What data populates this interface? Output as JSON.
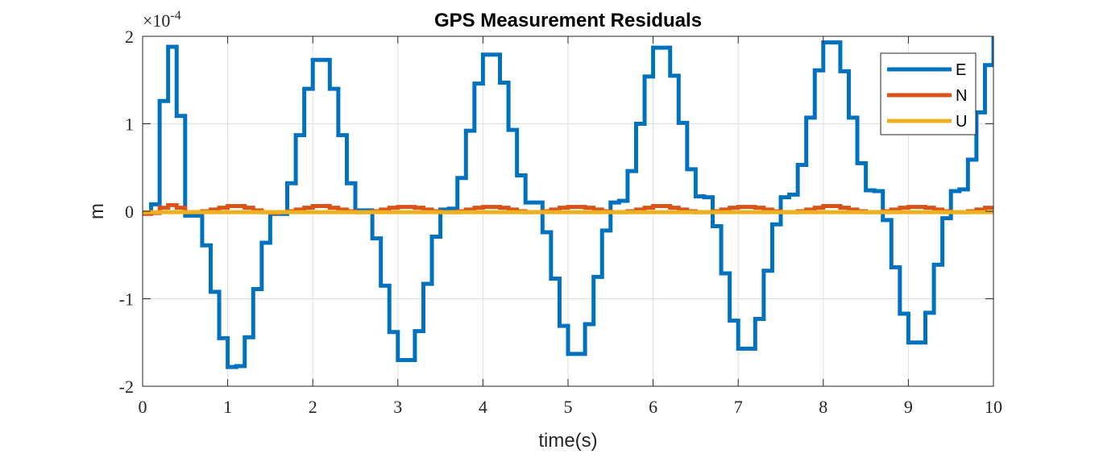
{
  "chart_data": {
    "type": "line",
    "title": "GPS Measurement Residuals",
    "xlabel": "time(s)",
    "ylabel": "m",
    "y_exponent": {
      "base": "×10",
      "power": "-4"
    },
    "xlim": [
      0,
      10
    ],
    "ylim": [
      -2,
      2
    ],
    "x_ticks": [
      "0",
      "1",
      "2",
      "3",
      "4",
      "5",
      "6",
      "7",
      "8",
      "9",
      "10"
    ],
    "y_ticks": [
      "-2",
      "-1",
      "0",
      "1",
      "2"
    ],
    "y_tick_values": [
      -2,
      -1,
      0,
      1,
      2
    ],
    "grid": true,
    "legend_position": "top-right",
    "step_plot": true,
    "series": [
      {
        "name": "E",
        "color": "#0072BD",
        "x": [
          0,
          0.1,
          0.2,
          0.3,
          0.4,
          0.5,
          0.6,
          0.7,
          0.8,
          0.9,
          1.0,
          1.1,
          1.2,
          1.3,
          1.4,
          1.5,
          1.6,
          1.7,
          1.8,
          1.9,
          2.0,
          2.1,
          2.2,
          2.3,
          2.4,
          2.5,
          2.6,
          2.7,
          2.8,
          2.9,
          3.0,
          3.1,
          3.2,
          3.3,
          3.4,
          3.5,
          3.6,
          3.7,
          3.8,
          3.9,
          4.0,
          4.1,
          4.2,
          4.3,
          4.4,
          4.5,
          4.6,
          4.7,
          4.8,
          4.9,
          5.0,
          5.1,
          5.2,
          5.3,
          5.4,
          5.5,
          5.6,
          5.7,
          5.8,
          5.9,
          6.0,
          6.1,
          6.2,
          6.3,
          6.4,
          6.5,
          6.6,
          6.7,
          6.8,
          6.9,
          7.0,
          7.1,
          7.2,
          7.3,
          7.4,
          7.5,
          7.6,
          7.7,
          7.8,
          7.9,
          8.0,
          8.1,
          8.2,
          8.3,
          8.4,
          8.5,
          8.6,
          8.7,
          8.8,
          8.9,
          9.0,
          9.1,
          9.2,
          9.3,
          9.4,
          9.5,
          9.6,
          9.7,
          9.8,
          9.9
        ],
        "values": [
          -0.02,
          0.08,
          1.26,
          1.88,
          1.09,
          -0.05,
          -0.05,
          -0.39,
          -0.92,
          -1.45,
          -1.78,
          -1.77,
          -1.44,
          -0.89,
          -0.36,
          -0.03,
          -0.03,
          0.32,
          0.87,
          1.4,
          1.73,
          1.73,
          1.4,
          0.87,
          0.32,
          0.01,
          0.01,
          -0.31,
          -0.85,
          -1.38,
          -1.7,
          -1.7,
          -1.37,
          -0.83,
          -0.29,
          0.02,
          0.03,
          0.38,
          0.92,
          1.46,
          1.79,
          1.79,
          1.47,
          0.93,
          0.41,
          0.1,
          0.1,
          -0.24,
          -0.77,
          -1.31,
          -1.63,
          -1.63,
          -1.29,
          -0.75,
          -0.22,
          0.1,
          0.12,
          0.46,
          1.0,
          1.54,
          1.87,
          1.87,
          1.55,
          1.01,
          0.48,
          0.17,
          0.16,
          -0.17,
          -0.71,
          -1.25,
          -1.57,
          -1.57,
          -1.23,
          -0.68,
          -0.15,
          0.16,
          0.19,
          0.53,
          1.07,
          1.61,
          1.93,
          1.93,
          1.6,
          1.07,
          0.55,
          0.24,
          0.23,
          -0.1,
          -0.64,
          -1.17,
          -1.5,
          -1.5,
          -1.16,
          -0.61,
          -0.08,
          0.23,
          0.25,
          0.59,
          1.13,
          1.67
        ],
        "end_value": 2.0
      },
      {
        "name": "N",
        "color": "#D95319",
        "x": [
          0,
          0.1,
          0.2,
          0.3,
          0.4,
          0.5,
          0.6,
          0.7,
          0.8,
          0.9,
          1.0,
          1.1,
          1.2,
          1.3,
          1.4,
          1.5,
          1.6,
          1.7,
          1.8,
          1.9,
          2.0,
          2.1,
          2.2,
          2.3,
          2.4,
          2.5,
          2.6,
          2.7,
          2.8,
          2.9,
          3.0,
          3.1,
          3.2,
          3.3,
          3.4,
          3.5,
          3.6,
          3.7,
          3.8,
          3.9,
          4.0,
          4.1,
          4.2,
          4.3,
          4.4,
          4.5,
          4.6,
          4.7,
          4.8,
          4.9,
          5.0,
          5.1,
          5.2,
          5.3,
          5.4,
          5.5,
          5.6,
          5.7,
          5.8,
          5.9,
          6.0,
          6.1,
          6.2,
          6.3,
          6.4,
          6.5,
          6.6,
          6.7,
          6.8,
          6.9,
          7.0,
          7.1,
          7.2,
          7.3,
          7.4,
          7.5,
          7.6,
          7.7,
          7.8,
          7.9,
          8.0,
          8.1,
          8.2,
          8.3,
          8.4,
          8.5,
          8.6,
          8.7,
          8.8,
          8.9,
          9.0,
          9.1,
          9.2,
          9.3,
          9.4,
          9.5,
          9.6,
          9.7,
          9.8,
          9.9
        ],
        "values": [
          -0.03,
          -0.02,
          0.04,
          0.07,
          0.04,
          -0.01,
          -0.01,
          0.0,
          0.02,
          0.04,
          0.06,
          0.06,
          0.04,
          0.01,
          -0.01,
          -0.02,
          -0.01,
          0.0,
          0.02,
          0.04,
          0.06,
          0.06,
          0.04,
          0.02,
          0.0,
          -0.01,
          -0.01,
          0.0,
          0.02,
          0.04,
          0.05,
          0.05,
          0.04,
          0.02,
          0.0,
          -0.01,
          -0.01,
          0.0,
          0.02,
          0.04,
          0.05,
          0.05,
          0.04,
          0.02,
          0.0,
          -0.01,
          -0.01,
          0.0,
          0.02,
          0.04,
          0.05,
          0.05,
          0.04,
          0.02,
          0.0,
          -0.01,
          -0.01,
          0.0,
          0.02,
          0.04,
          0.06,
          0.06,
          0.04,
          0.02,
          0.0,
          -0.01,
          -0.01,
          0.0,
          0.02,
          0.04,
          0.05,
          0.05,
          0.04,
          0.02,
          0.0,
          -0.01,
          -0.01,
          0.0,
          0.02,
          0.04,
          0.06,
          0.06,
          0.04,
          0.02,
          0.0,
          -0.01,
          -0.01,
          0.0,
          0.02,
          0.04,
          0.05,
          0.05,
          0.04,
          0.02,
          0.0,
          -0.01,
          -0.01,
          0.0,
          0.02,
          0.04
        ],
        "end_value": 0.06
      },
      {
        "name": "U",
        "color": "#EDB120",
        "x": [
          0,
          10
        ],
        "values": [
          -0.01,
          -0.01
        ],
        "end_value": -0.01
      }
    ]
  }
}
